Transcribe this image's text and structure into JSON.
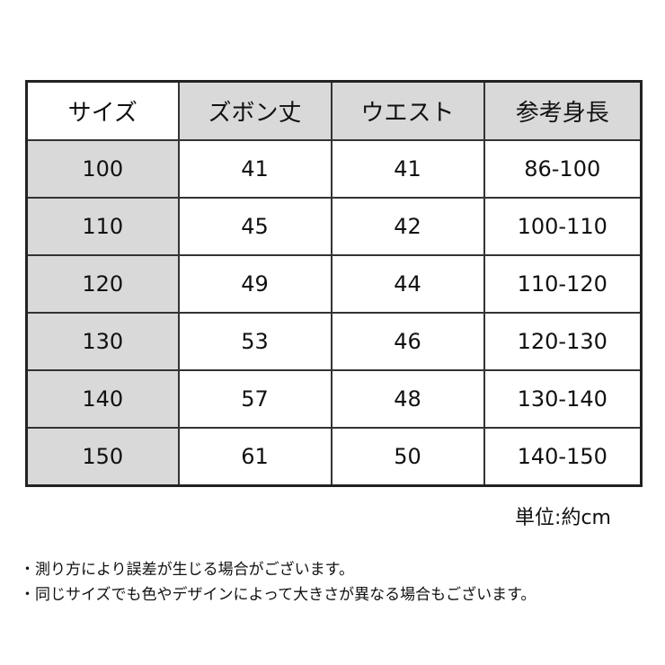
{
  "table": {
    "headers": [
      "サイズ",
      "ズボン丈",
      "ウエスト",
      "参考身長"
    ],
    "rows": [
      [
        "100",
        "41",
        "41",
        "86-100"
      ],
      [
        "110",
        "45",
        "42",
        "100-110"
      ],
      [
        "120",
        "49",
        "44",
        "110-120"
      ],
      [
        "130",
        "53",
        "46",
        "120-130"
      ],
      [
        "140",
        "57",
        "48",
        "130-140"
      ],
      [
        "150",
        "61",
        "50",
        "140-150"
      ]
    ]
  },
  "unit": "単位:約cm",
  "notes": [
    "・測り方により誤差が生じる場合がございます。",
    "・同じサイズでも色やデザインによって大きさが異なる場合もございます。"
  ],
  "colors": {
    "header_gray": "#d9d9d9",
    "border": "#222222"
  }
}
